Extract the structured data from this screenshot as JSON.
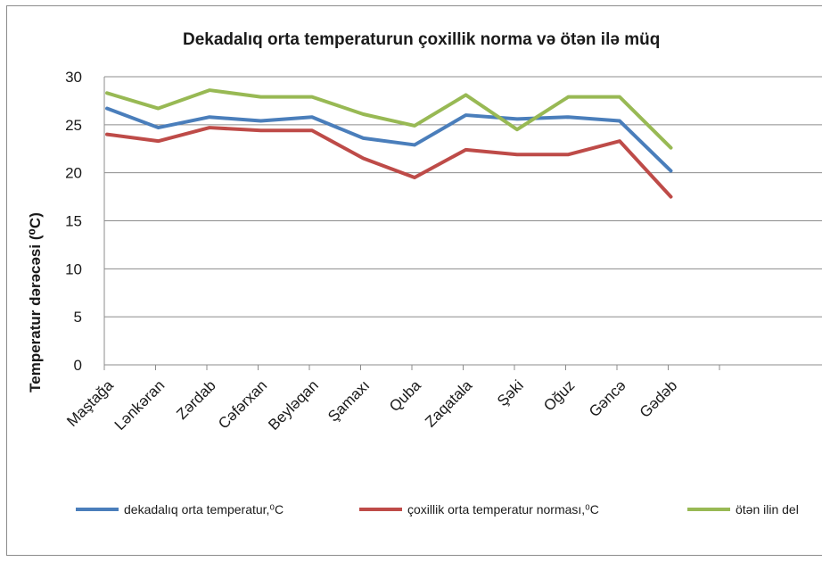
{
  "chart_data": {
    "type": "line",
    "title": "Dekadalıq orta temperaturun çoxillik norma və ötən ilə müq",
    "ylabel": "Temperatur dərəcəsi (⁰C)",
    "xlabel": "",
    "ylim": [
      0,
      30
    ],
    "yticks": [
      0,
      5,
      10,
      15,
      20,
      25,
      30
    ],
    "grid": true,
    "legend_position": "bottom",
    "categories": [
      "Maştağa",
      "Lənkəran",
      "Zərdab",
      "Cəfərxan",
      "Beyləqan",
      "Şamaxı",
      "Quba",
      "Zaqatala",
      "Şəki",
      "Oğuz",
      "Gəncə",
      "Gədəb"
    ],
    "series": [
      {
        "name": "dekadalıq orta temperatur,⁰C",
        "color": "#4a7ebb",
        "values": [
          26.7,
          24.7,
          25.8,
          25.4,
          25.8,
          23.6,
          22.9,
          26.0,
          25.6,
          25.8,
          25.4,
          20.2
        ]
      },
      {
        "name": "çoxillik orta temperatur norması,⁰C",
        "color": "#be4b48",
        "values": [
          24.0,
          23.3,
          24.7,
          24.4,
          24.4,
          21.5,
          19.5,
          22.4,
          21.9,
          21.9,
          23.3,
          17.5
        ]
      },
      {
        "name": "ötən ilin del",
        "color": "#98b954",
        "values": [
          28.3,
          26.7,
          28.6,
          27.9,
          27.9,
          26.1,
          24.9,
          28.1,
          24.5,
          27.9,
          27.9,
          22.6
        ]
      }
    ]
  }
}
